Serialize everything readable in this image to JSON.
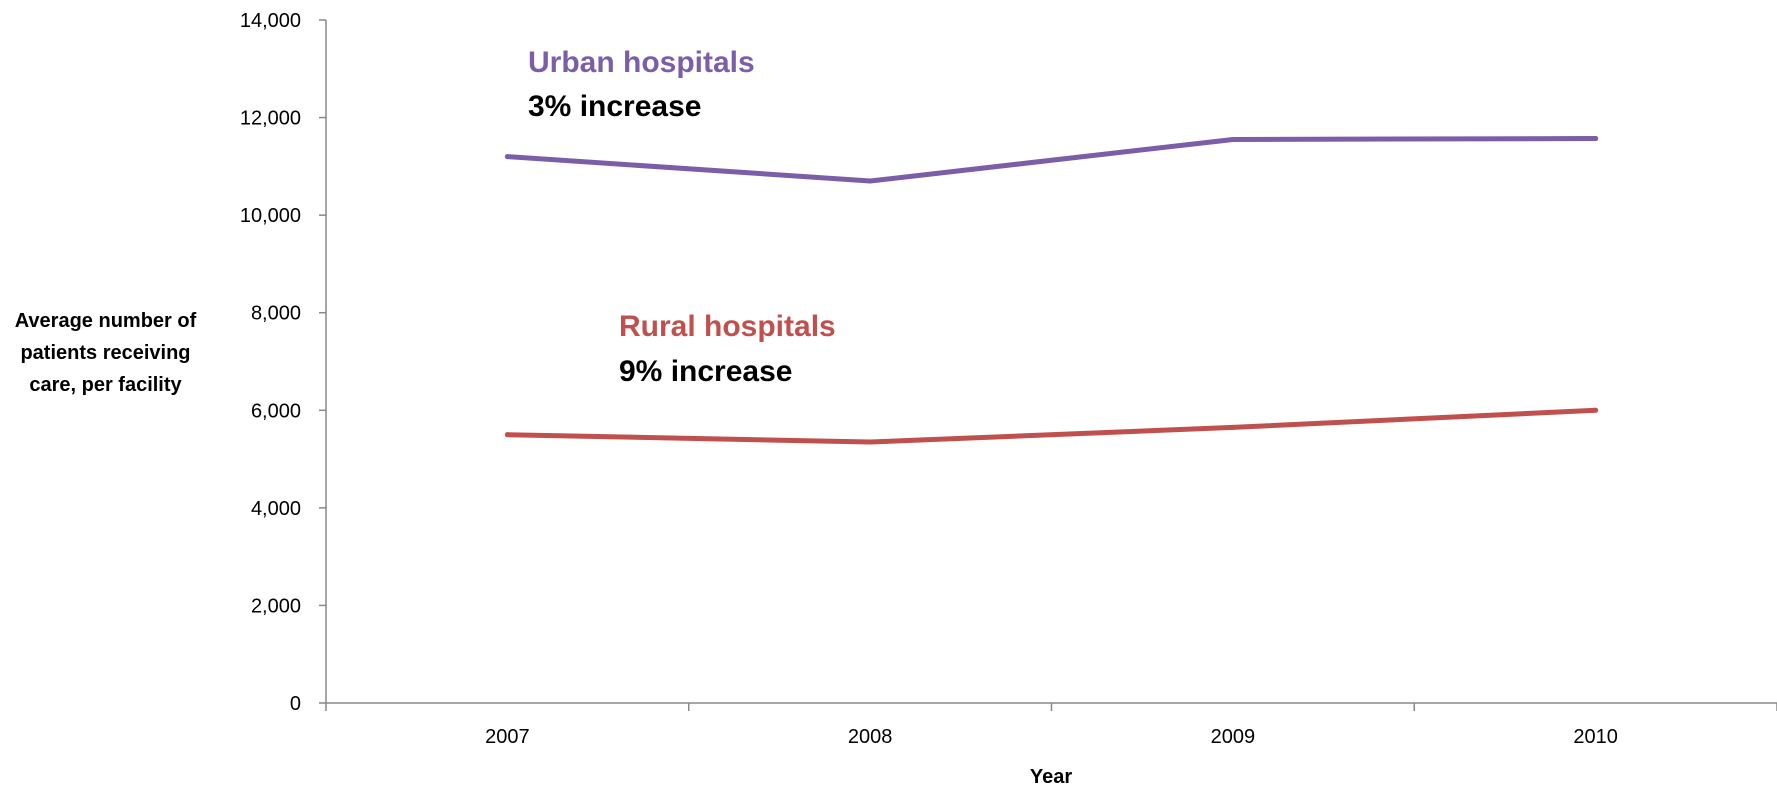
{
  "chart_data": {
    "type": "line",
    "title": "",
    "xlabel": "Year",
    "ylabel": "Average number of patients receiving care, per facility",
    "categories": [
      "2007",
      "2008",
      "2009",
      "2010"
    ],
    "ylim": [
      0,
      14000
    ],
    "yticks": [
      "0",
      "2,000",
      "4,000",
      "6,000",
      "8,000",
      "10,000",
      "12,000",
      "14,000"
    ],
    "ytick_values": [
      0,
      2000,
      4000,
      6000,
      8000,
      10000,
      12000,
      14000
    ],
    "grid": false,
    "legend": "none",
    "series": [
      {
        "label": "Urban hospitals",
        "values": [
          11200,
          10700,
          11550,
          11570
        ],
        "color": "#7b5ea7",
        "change_label": "3% increase"
      },
      {
        "label": "Rural hospitals",
        "values": [
          5500,
          5350,
          5650,
          6000
        ],
        "color": "#c0504d",
        "change_label": "9% increase"
      }
    ]
  }
}
